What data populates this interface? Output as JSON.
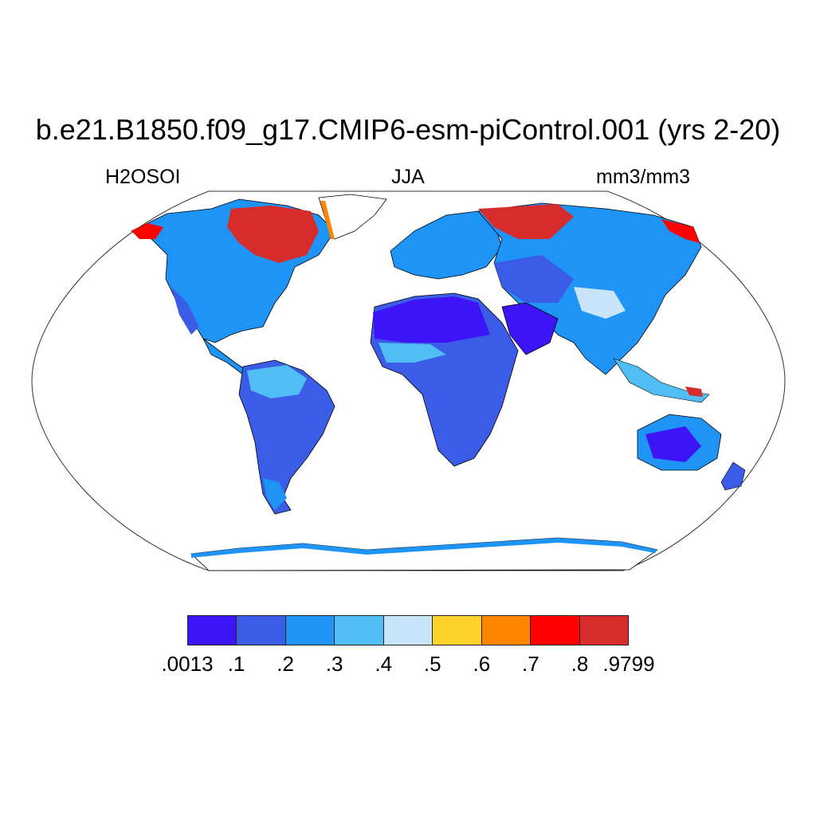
{
  "title": "b.e21.B1850.f09_g17.CMIP6-esm-piControl.001 (yrs 2-20)",
  "subtitle_left": "H2OSOI",
  "subtitle_center": "JJA",
  "subtitle_right": "mm3/mm3",
  "colorbar": {
    "colors": [
      "#3d14f5",
      "#3a5ce6",
      "#1e94f7",
      "#50bef5",
      "#c8e4f8",
      "#fdd22c",
      "#fd8500",
      "#fe0000",
      "#d62c2c"
    ],
    "labels": [
      ".0013",
      ".1",
      ".2",
      ".3",
      ".4",
      ".5",
      ".6",
      ".7",
      ".8",
      ".9799"
    ]
  }
}
